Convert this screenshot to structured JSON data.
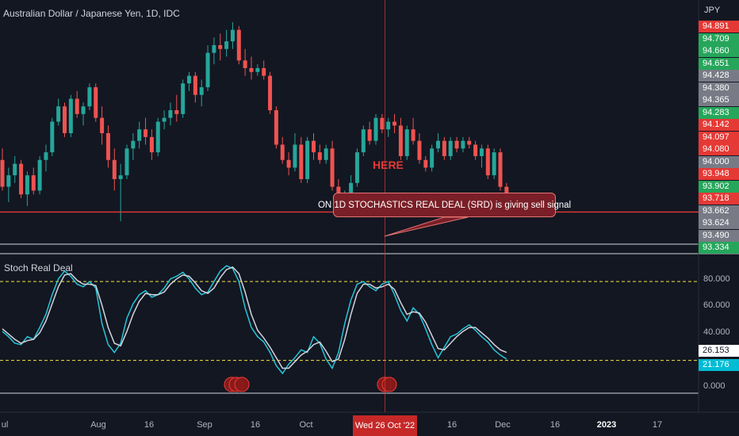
{
  "header": {
    "title": "Australian Dollar / Japanese Yen, 1D, IDC",
    "currency": "JPY"
  },
  "indicator": {
    "title": "Stoch Real Deal"
  },
  "annotations": {
    "callout": "ON 1D STOCHASTICS REAL DEAL (SRD) is giving sell signal",
    "here": "HERE"
  },
  "colors": {
    "background": "#131722",
    "up": "#26a69a",
    "down": "#ef5350",
    "k_line": "#26c6da",
    "d_line": "#d1d4dc",
    "level": "#f5e642",
    "crosshair": "#e53935",
    "support": "#e53935"
  },
  "price_scale": [
    {
      "label": "94.891",
      "color": "#e53935"
    },
    {
      "label": "94.709",
      "color": "#26a65b"
    },
    {
      "label": "94.660",
      "color": "#26a65b"
    },
    {
      "label": "94.651",
      "color": "#26a65b"
    },
    {
      "label": "94.428",
      "color": "#787b86"
    },
    {
      "label": "94.380",
      "color": "#787b86"
    },
    {
      "label": "94.365",
      "color": "#787b86"
    },
    {
      "label": "94.283",
      "color": "#26a65b"
    },
    {
      "label": "94.142",
      "color": "#e53935"
    },
    {
      "label": "94.097",
      "color": "#e53935"
    },
    {
      "label": "94.080",
      "color": "#e53935"
    },
    {
      "label": "94.000",
      "color": "#787b86"
    },
    {
      "label": "93.948",
      "color": "#e53935"
    },
    {
      "label": "93.902",
      "color": "#26a65b"
    },
    {
      "label": "93.718",
      "color": "#e53935"
    },
    {
      "label": "93.662",
      "color": "#787b86"
    },
    {
      "label": "93.624",
      "color": "#787b86"
    },
    {
      "label": "93.490",
      "color": "#787b86"
    },
    {
      "label": "93.334",
      "color": "#26a65b"
    }
  ],
  "indicator_scale": {
    "ticks": [
      "80.000",
      "60.000",
      "40.000",
      "0.000"
    ],
    "values": [
      {
        "label": "26.153",
        "bg": "#ffffff",
        "fg": "#131722"
      },
      {
        "label": "21.176",
        "bg": "#00bcd4",
        "fg": "#ffffff"
      }
    ]
  },
  "x_axis": {
    "labels": [
      {
        "label": "ul",
        "bold": false
      },
      {
        "label": "Aug",
        "bold": false
      },
      {
        "label": "16",
        "bold": false
      },
      {
        "label": "Sep",
        "bold": false
      },
      {
        "label": "16",
        "bold": false
      },
      {
        "label": "Oct",
        "bold": false
      },
      {
        "label": "16",
        "bold": false
      },
      {
        "label": "Dec",
        "bold": false
      },
      {
        "label": "16",
        "bold": false
      },
      {
        "label": "2023",
        "bold": true
      },
      {
        "label": "17",
        "bold": false
      }
    ],
    "crosshair_label": "Wed 26 Oct '22"
  },
  "chart_data": [
    {
      "type": "candlestick",
      "title": "Australian Dollar / Japanese Yen, 1D, IDC",
      "ylim": [
        93.3,
        96.2
      ],
      "support_level": 93.72,
      "ohlc": [
        [
          94.4,
          94.55,
          94.0,
          94.05
        ],
        [
          94.05,
          94.3,
          93.85,
          94.2
        ],
        [
          94.2,
          94.45,
          94.1,
          94.35
        ],
        [
          94.35,
          94.4,
          93.9,
          93.95
        ],
        [
          93.95,
          94.25,
          93.8,
          94.2
        ],
        [
          94.2,
          94.3,
          93.95,
          94.0
        ],
        [
          94.0,
          94.45,
          93.95,
          94.4
        ],
        [
          94.4,
          94.6,
          94.25,
          94.5
        ],
        [
          94.5,
          94.95,
          94.45,
          94.9
        ],
        [
          94.9,
          95.2,
          94.85,
          95.1
        ],
        [
          95.1,
          95.15,
          94.7,
          94.75
        ],
        [
          94.75,
          95.25,
          94.7,
          95.2
        ],
        [
          95.2,
          95.3,
          94.95,
          95.0
        ],
        [
          95.0,
          95.15,
          94.85,
          95.1
        ],
        [
          95.1,
          95.4,
          95.05,
          95.35
        ],
        [
          95.35,
          95.4,
          94.9,
          94.95
        ],
        [
          94.95,
          95.1,
          94.6,
          94.75
        ],
        [
          94.75,
          94.85,
          94.3,
          94.4
        ],
        [
          94.4,
          94.55,
          94.0,
          94.15
        ],
        [
          94.15,
          94.35,
          93.6,
          94.2
        ],
        [
          94.2,
          94.6,
          94.15,
          94.55
        ],
        [
          94.55,
          94.75,
          94.4,
          94.65
        ],
        [
          94.65,
          94.9,
          94.55,
          94.8
        ],
        [
          94.8,
          94.95,
          94.6,
          94.7
        ],
        [
          94.7,
          94.8,
          94.4,
          94.5
        ],
        [
          94.5,
          94.95,
          94.45,
          94.9
        ],
        [
          94.9,
          95.05,
          94.8,
          94.95
        ],
        [
          94.95,
          95.15,
          94.85,
          95.05
        ],
        [
          95.05,
          95.25,
          94.9,
          95.0
        ],
        [
          95.0,
          95.45,
          94.95,
          95.4
        ],
        [
          95.4,
          95.55,
          95.3,
          95.5
        ],
        [
          95.5,
          95.55,
          95.15,
          95.25
        ],
        [
          95.25,
          95.45,
          95.1,
          95.35
        ],
        [
          95.35,
          95.9,
          95.3,
          95.8
        ],
        [
          95.8,
          96.0,
          95.65,
          95.9
        ],
        [
          95.9,
          96.05,
          95.7,
          95.85
        ],
        [
          95.85,
          96.1,
          95.75,
          95.95
        ],
        [
          95.95,
          96.2,
          95.85,
          96.1
        ],
        [
          96.1,
          96.15,
          95.65,
          95.7
        ],
        [
          95.7,
          95.85,
          95.5,
          95.6
        ],
        [
          95.6,
          95.75,
          95.45,
          95.55
        ],
        [
          95.55,
          95.65,
          95.5,
          95.6
        ],
        [
          95.6,
          95.7,
          95.45,
          95.5
        ],
        [
          95.5,
          95.55,
          95.0,
          95.05
        ],
        [
          95.05,
          95.1,
          94.55,
          94.6
        ],
        [
          94.6,
          94.7,
          94.35,
          94.4
        ],
        [
          94.4,
          94.5,
          94.2,
          94.3
        ],
        [
          94.3,
          94.75,
          94.25,
          94.6
        ],
        [
          94.6,
          94.7,
          94.1,
          94.15
        ],
        [
          94.15,
          94.7,
          94.1,
          94.65
        ],
        [
          94.65,
          94.75,
          94.4,
          94.5
        ],
        [
          94.5,
          94.6,
          94.35,
          94.4
        ],
        [
          94.4,
          94.6,
          94.35,
          94.55
        ],
        [
          94.55,
          94.65,
          94.0,
          94.05
        ],
        [
          94.05,
          94.15,
          93.75,
          93.8
        ],
        [
          93.8,
          94.0,
          93.75,
          93.9
        ],
        [
          93.9,
          94.2,
          93.85,
          94.1
        ],
        [
          94.1,
          94.55,
          94.05,
          94.5
        ],
        [
          94.5,
          94.85,
          94.45,
          94.8
        ],
        [
          94.8,
          94.9,
          94.6,
          94.65
        ],
        [
          94.65,
          95.0,
          94.6,
          94.95
        ],
        [
          94.95,
          95.0,
          94.75,
          94.8
        ],
        [
          94.8,
          94.95,
          94.7,
          94.9
        ],
        [
          94.9,
          95.0,
          94.75,
          94.85
        ],
        [
          94.85,
          94.95,
          94.4,
          94.45
        ],
        [
          94.45,
          94.85,
          94.4,
          94.8
        ],
        [
          94.8,
          94.95,
          94.6,
          94.65
        ],
        [
          94.65,
          94.75,
          94.35,
          94.4
        ],
        [
          94.4,
          94.45,
          94.25,
          94.3
        ],
        [
          94.3,
          94.6,
          94.25,
          94.55
        ],
        [
          94.55,
          94.75,
          94.5,
          94.65
        ],
        [
          94.65,
          94.7,
          94.4,
          94.45
        ],
        [
          94.45,
          94.7,
          94.4,
          94.65
        ],
        [
          94.65,
          94.7,
          94.5,
          94.55
        ],
        [
          94.55,
          94.7,
          94.5,
          94.65
        ],
        [
          94.65,
          94.7,
          94.55,
          94.6
        ],
        [
          94.6,
          94.65,
          94.4,
          94.45
        ],
        [
          94.45,
          94.6,
          94.3,
          94.55
        ],
        [
          94.55,
          94.6,
          94.15,
          94.2
        ],
        [
          94.2,
          94.55,
          94.15,
          94.5
        ],
        [
          94.5,
          94.55,
          94.0,
          94.05
        ],
        [
          94.05,
          94.1,
          93.65,
          93.72
        ]
      ]
    },
    {
      "type": "line",
      "title": "Stoch Real Deal",
      "ylim": [
        -5,
        100
      ],
      "levels": [
        80,
        20
      ],
      "series": [
        {
          "values": [
            42,
            38,
            33,
            32,
            38,
            36,
            45,
            55,
            70,
            82,
            88,
            84,
            78,
            76,
            80,
            75,
            48,
            32,
            26,
            33,
            52,
            63,
            70,
            73,
            68,
            70,
            75,
            82,
            84,
            87,
            82,
            75,
            70,
            72,
            80,
            88,
            92,
            90,
            80,
            60,
            45,
            38,
            34,
            26,
            16,
            10,
            17,
            22,
            28,
            26,
            38,
            33,
            21,
            14,
            26,
            48,
            66,
            78,
            80,
            76,
            73,
            78,
            80,
            70,
            58,
            50,
            60,
            55,
            44,
            32,
            22,
            30,
            38,
            40,
            44,
            47,
            43,
            38,
            34,
            28,
            24,
            21
          ]
        },
        {
          "values": [
            44,
            40,
            36,
            33,
            35,
            36,
            41,
            50,
            63,
            76,
            85,
            86,
            81,
            78,
            78,
            77,
            62,
            45,
            33,
            31,
            42,
            55,
            65,
            71,
            70,
            70,
            72,
            78,
            82,
            85,
            84,
            79,
            73,
            71,
            75,
            83,
            89,
            91,
            86,
            72,
            55,
            43,
            37,
            30,
            22,
            14,
            14,
            19,
            24,
            27,
            32,
            34,
            27,
            19,
            21,
            36,
            55,
            71,
            78,
            78,
            75,
            76,
            78,
            74,
            64,
            55,
            57,
            56,
            49,
            39,
            29,
            28,
            33,
            38,
            42,
            45,
            45,
            41,
            37,
            32,
            28,
            26
          ]
        }
      ]
    }
  ]
}
